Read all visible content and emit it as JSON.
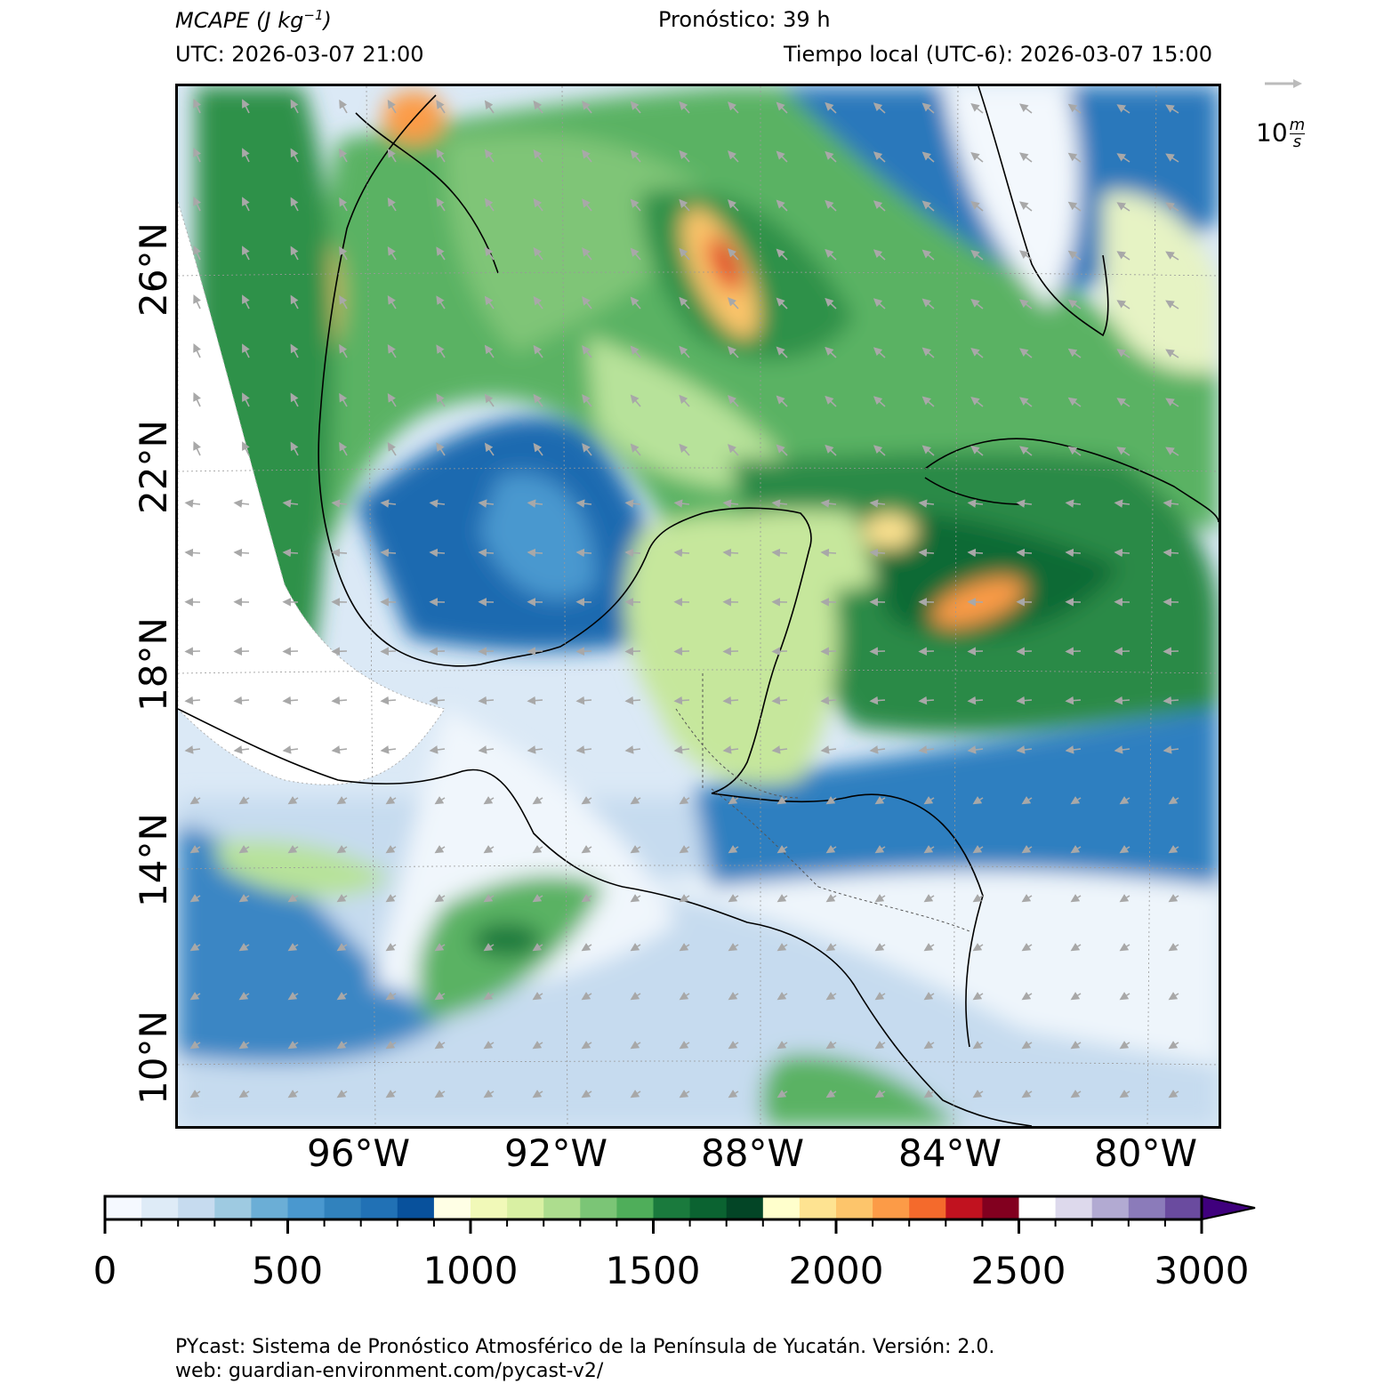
{
  "header": {
    "variable_label": "MCAPE",
    "variable_unit_base": "(J kg",
    "variable_unit_exp": "−1",
    "variable_unit_close": ")",
    "forecast": "Pronóstico: 39 h",
    "utc": "UTC:  2026-03-07 21:00",
    "local_time": "Tiempo local (UTC-6): 2026-03-07 15:00"
  },
  "wind_reference": {
    "value": "10",
    "unit_num": "m",
    "unit_den": "s",
    "arrow_color": "#bbbbbb"
  },
  "map": {
    "lat_labels": [
      "26°N",
      "22°N",
      "18°N",
      "14°N",
      "10°N"
    ],
    "lon_labels": [
      "96°W",
      "92°W",
      "88°W",
      "84°W",
      "80°W"
    ],
    "land_nodata_color": "#ffffff",
    "coast_color": "#000000",
    "vector_color": "#a8a8a8"
  },
  "colorbar": {
    "ticks": [
      "0",
      "500",
      "1000",
      "1500",
      "2000",
      "2500",
      "3000"
    ],
    "min": 0,
    "max": 3000,
    "step": 100,
    "extend": "max",
    "colors": [
      "#f5f9ff",
      "#deebf7",
      "#c6dbef",
      "#9ecae1",
      "#6baed6",
      "#4a98cf",
      "#3182bd",
      "#2171b5",
      "#1361ab",
      "#08519c",
      "#ffffe5",
      "#f1f9b8",
      "#d9f0a3",
      "#addd8e",
      "#7bc576",
      "#4fae5a",
      "#2f9149",
      "#1a7a3d",
      "#0b6331",
      "#034526",
      "#ffffcc",
      "#fee391",
      "#fdc56b",
      "#fc9b47",
      "#f46a2c",
      "#e0331f",
      "#c1121f",
      "#82001f",
      "#ffffff",
      "#ddd9ec",
      "#b2aad2",
      "#8b7bba",
      "#6a4b9f",
      "#4a1a8a"
    ],
    "over_color": "#3f007d"
  },
  "footer": {
    "line1": "PYcast: Sistema de Pronóstico Atmosférico de la Península de Yucatán. Versión: 2.0.",
    "line2": "web: guardian-environment.com/pycast-v2/"
  }
}
